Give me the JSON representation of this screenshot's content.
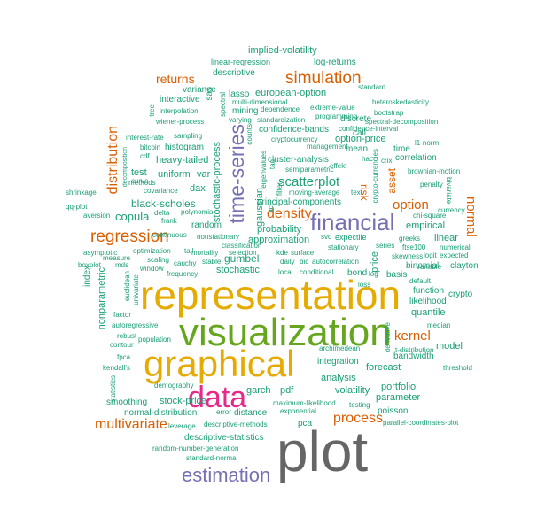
{
  "colors": {
    "teal": "#1b9e77",
    "orange": "#d95f02",
    "purple": "#7570b3",
    "pink": "#e7298a",
    "green": "#66a61e",
    "gold": "#e6ab02",
    "brown": "#a6761d",
    "gray": "#666666"
  },
  "words": [
    {
      "text": "plot",
      "weight": 10,
      "color": "gray"
    },
    {
      "text": "representation",
      "weight": 9,
      "color": "gold"
    },
    {
      "text": "visualization",
      "weight": 9,
      "color": "green"
    },
    {
      "text": "graphical",
      "weight": 8,
      "color": "gold"
    },
    {
      "text": "data",
      "weight": 7,
      "color": "pink"
    },
    {
      "text": "financial",
      "weight": 6,
      "color": "purple"
    },
    {
      "text": "time-series",
      "weight": 6,
      "color": "purple"
    },
    {
      "text": "estimation",
      "weight": 5,
      "color": "purple"
    },
    {
      "text": "simulation",
      "weight": 5,
      "color": "orange"
    },
    {
      "text": "regression",
      "weight": 5,
      "color": "orange"
    },
    {
      "text": "distribution",
      "weight": 4,
      "color": "orange"
    },
    {
      "text": "density",
      "weight": 4,
      "color": "orange"
    },
    {
      "text": "multivariate",
      "weight": 4,
      "color": "orange"
    },
    {
      "text": "process",
      "weight": 4,
      "color": "orange"
    },
    {
      "text": "scatterplot",
      "weight": 4,
      "color": "teal"
    },
    {
      "text": "returns",
      "weight": 4,
      "color": "orange"
    },
    {
      "text": "kernel",
      "weight": 4,
      "color": "orange"
    },
    {
      "text": "option",
      "weight": 4,
      "color": "orange"
    },
    {
      "text": "normal",
      "weight": 4,
      "color": "orange"
    },
    {
      "text": "asset",
      "weight": 3,
      "color": "orange"
    },
    {
      "text": "risk",
      "weight": 3,
      "color": "orange"
    },
    {
      "text": "implied-volatility",
      "weight": 3,
      "color": "teal"
    },
    {
      "text": "copula",
      "weight": 3,
      "color": "teal"
    },
    {
      "text": "black-scholes",
      "weight": 3,
      "color": "teal"
    },
    {
      "text": "stochastic-process",
      "weight": 3,
      "color": "teal"
    },
    {
      "text": "gaussian",
      "weight": 3,
      "color": "teal"
    },
    {
      "text": "approximation",
      "weight": 3,
      "color": "teal"
    },
    {
      "text": "probability",
      "weight": 3,
      "color": "teal"
    },
    {
      "text": "principal-components",
      "weight": 3,
      "color": "teal"
    },
    {
      "text": "european-option",
      "weight": 3,
      "color": "teal"
    },
    {
      "text": "confidence-bands",
      "weight": 3,
      "color": "teal"
    },
    {
      "text": "cluster-analysis",
      "weight": 3,
      "color": "teal"
    },
    {
      "text": "option-price",
      "weight": 3,
      "color": "teal"
    },
    {
      "text": "correlation",
      "weight": 3,
      "color": "teal"
    },
    {
      "text": "empirical",
      "weight": 3,
      "color": "teal"
    },
    {
      "text": "linear",
      "weight": 3,
      "color": "teal"
    },
    {
      "text": "gumbel",
      "weight": 3,
      "color": "teal"
    },
    {
      "text": "stochastic",
      "weight": 3,
      "color": "teal"
    },
    {
      "text": "nonparametric",
      "weight": 3,
      "color": "teal"
    },
    {
      "text": "quantile",
      "weight": 3,
      "color": "teal"
    },
    {
      "text": "model",
      "weight": 3,
      "color": "teal"
    },
    {
      "text": "analysis",
      "weight": 3,
      "color": "teal"
    },
    {
      "text": "volatility",
      "weight": 3,
      "color": "teal"
    },
    {
      "text": "parameter",
      "weight": 3,
      "color": "teal"
    },
    {
      "text": "pdf",
      "weight": 3,
      "color": "teal"
    },
    {
      "text": "garch",
      "weight": 3,
      "color": "teal"
    },
    {
      "text": "forecast",
      "weight": 3,
      "color": "teal"
    },
    {
      "text": "portfolio",
      "weight": 3,
      "color": "teal"
    },
    {
      "text": "stock-price",
      "weight": 3,
      "color": "teal"
    },
    {
      "text": "smoothing",
      "weight": 3,
      "color": "teal"
    },
    {
      "text": "normal-distribution",
      "weight": 3,
      "color": "teal"
    },
    {
      "text": "distance",
      "weight": 3,
      "color": "teal"
    },
    {
      "text": "descriptive-statistics",
      "weight": 3,
      "color": "teal"
    },
    {
      "text": "pca",
      "weight": 3,
      "color": "teal"
    },
    {
      "text": "test",
      "weight": 3,
      "color": "teal"
    },
    {
      "text": "uniform",
      "weight": 3,
      "color": "teal"
    },
    {
      "text": "var",
      "weight": 3,
      "color": "teal"
    },
    {
      "text": "dax",
      "weight": 3,
      "color": "teal"
    },
    {
      "text": "histogram",
      "weight": 3,
      "color": "teal"
    },
    {
      "text": "heavy-tailed",
      "weight": 3,
      "color": "teal"
    },
    {
      "text": "random",
      "weight": 3,
      "color": "teal"
    },
    {
      "text": "lasso",
      "weight": 3,
      "color": "teal"
    },
    {
      "text": "call",
      "weight": 3,
      "color": "teal"
    },
    {
      "text": "mean",
      "weight": 3,
      "color": "teal"
    },
    {
      "text": "price",
      "weight": 3,
      "color": "teal"
    },
    {
      "text": "bond",
      "weight": 3,
      "color": "teal"
    },
    {
      "text": "crypto",
      "weight": 2,
      "color": "teal"
    },
    {
      "text": "function",
      "weight": 2,
      "color": "teal"
    },
    {
      "text": "likelihood",
      "weight": 2,
      "color": "teal"
    },
    {
      "text": "bandwidth",
      "weight": 2,
      "color": "teal"
    },
    {
      "text": "integration",
      "weight": 2,
      "color": "teal"
    },
    {
      "text": "poisson",
      "weight": 2,
      "color": "teal"
    },
    {
      "text": "interactive",
      "weight": 2,
      "color": "teal"
    },
    {
      "text": "variance",
      "weight": 2,
      "color": "teal"
    },
    {
      "text": "descriptive",
      "weight": 2,
      "color": "teal"
    },
    {
      "text": "log-returns",
      "weight": 2,
      "color": "teal"
    },
    {
      "text": "linear-regression",
      "weight": 1,
      "color": "teal"
    },
    {
      "text": "mining",
      "weight": 2,
      "color": "teal"
    },
    {
      "text": "discrete",
      "weight": 2,
      "color": "teal"
    },
    {
      "text": "time",
      "weight": 2,
      "color": "teal"
    },
    {
      "text": "binomial",
      "weight": 2,
      "color": "teal"
    },
    {
      "text": "clayton",
      "weight": 2,
      "color": "teal"
    },
    {
      "text": "basis",
      "weight": 2,
      "color": "teal"
    },
    {
      "text": "index",
      "weight": 2,
      "color": "teal"
    },
    {
      "text": "interest-rate",
      "weight": 1,
      "color": "teal"
    },
    {
      "text": "sampling",
      "weight": 1,
      "color": "teal"
    },
    {
      "text": "bitcoin",
      "weight": 1,
      "color": "teal"
    },
    {
      "text": "cdf",
      "weight": 1,
      "color": "teal"
    },
    {
      "text": "methods",
      "weight": 1,
      "color": "teal"
    },
    {
      "text": "covariance",
      "weight": 1,
      "color": "teal"
    },
    {
      "text": "delta",
      "weight": 1,
      "color": "teal"
    },
    {
      "text": "polynomial",
      "weight": 1,
      "color": "teal"
    },
    {
      "text": "frank",
      "weight": 1,
      "color": "teal"
    },
    {
      "text": "continuous",
      "weight": 1,
      "color": "teal"
    },
    {
      "text": "nonstationary",
      "weight": 1,
      "color": "teal"
    },
    {
      "text": "mortality",
      "weight": 1,
      "color": "teal"
    },
    {
      "text": "selection",
      "weight": 1,
      "color": "teal"
    },
    {
      "text": "scaling",
      "weight": 1,
      "color": "teal"
    },
    {
      "text": "cauchy",
      "weight": 1,
      "color": "teal"
    },
    {
      "text": "stable",
      "weight": 1,
      "color": "teal"
    },
    {
      "text": "window",
      "weight": 1,
      "color": "teal"
    },
    {
      "text": "frequency",
      "weight": 1,
      "color": "teal"
    },
    {
      "text": "asymptotic",
      "weight": 1,
      "color": "teal"
    },
    {
      "text": "optimization",
      "weight": 1,
      "color": "teal"
    },
    {
      "text": "tail",
      "weight": 1,
      "color": "teal"
    },
    {
      "text": "boxplot",
      "weight": 1,
      "color": "teal"
    },
    {
      "text": "mds",
      "weight": 1,
      "color": "teal"
    },
    {
      "text": "euclidean",
      "weight": 1,
      "color": "teal"
    },
    {
      "text": "univariate",
      "weight": 1,
      "color": "teal"
    },
    {
      "text": "factor",
      "weight": 1,
      "color": "teal"
    },
    {
      "text": "autoregressive",
      "weight": 1,
      "color": "teal"
    },
    {
      "text": "robust",
      "weight": 1,
      "color": "teal"
    },
    {
      "text": "population",
      "weight": 1,
      "color": "teal"
    },
    {
      "text": "contour",
      "weight": 1,
      "color": "teal"
    },
    {
      "text": "fpca",
      "weight": 1,
      "color": "teal"
    },
    {
      "text": "kendall's",
      "weight": 1,
      "color": "teal"
    },
    {
      "text": "statistics",
      "weight": 1,
      "color": "teal"
    },
    {
      "text": "demography",
      "weight": 1,
      "color": "teal"
    },
    {
      "text": "leverage",
      "weight": 1,
      "color": "teal"
    },
    {
      "text": "error",
      "weight": 1,
      "color": "teal"
    },
    {
      "text": "descriptive-methods",
      "weight": 1,
      "color": "teal"
    },
    {
      "text": "random-number-generation",
      "weight": 1,
      "color": "teal"
    },
    {
      "text": "standard-normal",
      "weight": 1,
      "color": "teal"
    },
    {
      "text": "maximum-likelihood",
      "weight": 1,
      "color": "teal"
    },
    {
      "text": "exponential",
      "weight": 1,
      "color": "teal"
    },
    {
      "text": "testing",
      "weight": 1,
      "color": "teal"
    },
    {
      "text": "parallel-coordinates-plot",
      "weight": 1,
      "color": "teal"
    },
    {
      "text": "archimedean",
      "weight": 1,
      "color": "teal"
    },
    {
      "text": "t-distribution",
      "weight": 1,
      "color": "teal"
    },
    {
      "text": "threshold",
      "weight": 1,
      "color": "teal"
    },
    {
      "text": "median",
      "weight": 1,
      "color": "teal"
    },
    {
      "text": "derivative",
      "weight": 1,
      "color": "teal"
    },
    {
      "text": "interpolation",
      "weight": 1,
      "color": "teal"
    },
    {
      "text": "wiener-process",
      "weight": 1,
      "color": "teal"
    },
    {
      "text": "tree",
      "weight": 1,
      "color": "teal"
    },
    {
      "text": "spectral",
      "weight": 1,
      "color": "teal"
    },
    {
      "text": "multi-dimensional",
      "weight": 1,
      "color": "teal"
    },
    {
      "text": "dependence",
      "weight": 1,
      "color": "teal"
    },
    {
      "text": "extreme-value",
      "weight": 1,
      "color": "teal"
    },
    {
      "text": "standardization",
      "weight": 1,
      "color": "teal"
    },
    {
      "text": "programming",
      "weight": 1,
      "color": "teal"
    },
    {
      "text": "confidence-interval",
      "weight": 1,
      "color": "teal"
    },
    {
      "text": "cryptocurrency",
      "weight": 1,
      "color": "teal"
    },
    {
      "text": "management",
      "weight": 1,
      "color": "teal"
    },
    {
      "text": "standard",
      "weight": 1,
      "color": "teal"
    },
    {
      "text": "heteroskedasticity",
      "weight": 1,
      "color": "teal"
    },
    {
      "text": "bootstrap",
      "weight": 1,
      "color": "teal"
    },
    {
      "text": "spectral-decomposition",
      "weight": 1,
      "color": "teal"
    },
    {
      "text": "l1-norm",
      "weight": 1,
      "color": "teal"
    },
    {
      "text": "brownian-motion",
      "weight": 1,
      "color": "teal"
    },
    {
      "text": "crypto-currencies",
      "weight": 1,
      "color": "teal"
    },
    {
      "text": "penalty",
      "weight": 1,
      "color": "teal"
    },
    {
      "text": "bivariate",
      "weight": 1,
      "color": "teal"
    },
    {
      "text": "chi-square",
      "weight": 1,
      "color": "teal"
    },
    {
      "text": "greeks",
      "weight": 1,
      "color": "teal"
    },
    {
      "text": "ftse100",
      "weight": 1,
      "color": "teal"
    },
    {
      "text": "skewness",
      "weight": 1,
      "color": "teal"
    },
    {
      "text": "numerical",
      "weight": 1,
      "color": "teal"
    },
    {
      "text": "expected",
      "weight": 1,
      "color": "teal"
    },
    {
      "text": "logit",
      "weight": 1,
      "color": "teal"
    },
    {
      "text": "currency",
      "weight": 1,
      "color": "teal"
    },
    {
      "text": "series",
      "weight": 1,
      "color": "teal"
    },
    {
      "text": "variable",
      "weight": 1,
      "color": "teal"
    },
    {
      "text": "default",
      "weight": 1,
      "color": "teal"
    },
    {
      "text": "loss",
      "weight": 1,
      "color": "teal"
    },
    {
      "text": "log",
      "weight": 1,
      "color": "teal"
    },
    {
      "text": "semiparametric",
      "weight": 1,
      "color": "teal"
    },
    {
      "text": "effekt",
      "weight": 1,
      "color": "teal"
    },
    {
      "text": "crix",
      "weight": 1,
      "color": "teal"
    },
    {
      "text": "hac",
      "weight": 1,
      "color": "teal"
    },
    {
      "text": "counts",
      "weight": 1,
      "color": "teal"
    },
    {
      "text": "tau",
      "weight": 1,
      "color": "teal"
    },
    {
      "text": "eigenvalues",
      "weight": 1,
      "color": "teal"
    },
    {
      "text": "acf",
      "weight": 1,
      "color": "teal"
    },
    {
      "text": "filter",
      "weight": 1,
      "color": "teal"
    },
    {
      "text": "moving-average",
      "weight": 1,
      "color": "teal"
    },
    {
      "text": "text",
      "weight": 1,
      "color": "teal"
    },
    {
      "text": "svd",
      "weight": 1,
      "color": "teal"
    },
    {
      "text": "expectile",
      "weight": 1,
      "color": "teal"
    },
    {
      "text": "stationary",
      "weight": 1,
      "color": "teal"
    },
    {
      "text": "kde",
      "weight": 1,
      "color": "teal"
    },
    {
      "text": "surface",
      "weight": 1,
      "color": "teal"
    },
    {
      "text": "daily",
      "weight": 1,
      "color": "teal"
    },
    {
      "text": "bic",
      "weight": 1,
      "color": "teal"
    },
    {
      "text": "autocorrelation",
      "weight": 1,
      "color": "teal"
    },
    {
      "text": "local",
      "weight": 1,
      "color": "teal"
    },
    {
      "text": "conditional",
      "weight": 1,
      "color": "teal"
    },
    {
      "text": "classification",
      "weight": 1,
      "color": "teal"
    },
    {
      "text": "varying",
      "weight": 1,
      "color": "teal"
    },
    {
      "text": "shrinkage",
      "weight": 1,
      "color": "teal"
    },
    {
      "text": "qq-plot",
      "weight": 1,
      "color": "teal"
    },
    {
      "text": "aversion",
      "weight": 1,
      "color": "teal"
    },
    {
      "text": "decomposition",
      "weight": 1,
      "color": "teal"
    },
    {
      "text": "curve",
      "weight": 1,
      "color": "teal"
    },
    {
      "text": "measure",
      "weight": 1,
      "color": "teal"
    },
    {
      "text": "sas",
      "weight": 1,
      "color": "teal"
    }
  ]
}
